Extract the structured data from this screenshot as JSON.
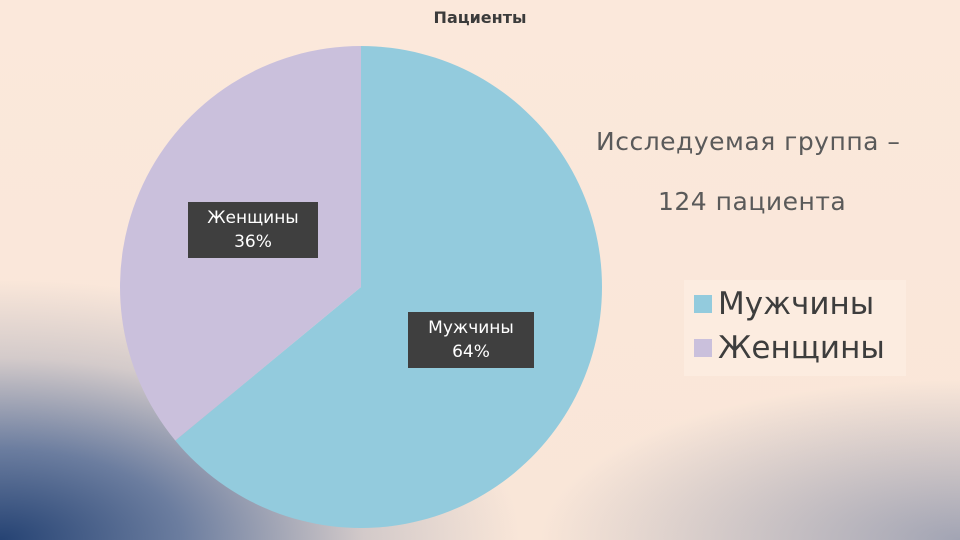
{
  "chart_data": {
    "type": "pie",
    "title": "Пациенты",
    "categories": [
      "Мужчины",
      "Женщины"
    ],
    "values": [
      64,
      36
    ],
    "data_labels": [
      {
        "name": "Мужчины",
        "value": "64%"
      },
      {
        "name": "Женщины",
        "value": "36%"
      }
    ],
    "colors": [
      "#93cbdd",
      "#cac0dc"
    ],
    "legend": {
      "placement": "right",
      "entries": [
        "Мужчины",
        "Женщины"
      ]
    }
  },
  "slide": {
    "subtitle_line1": "Исследуемая группа –",
    "subtitle_line2": "124 пациента"
  }
}
